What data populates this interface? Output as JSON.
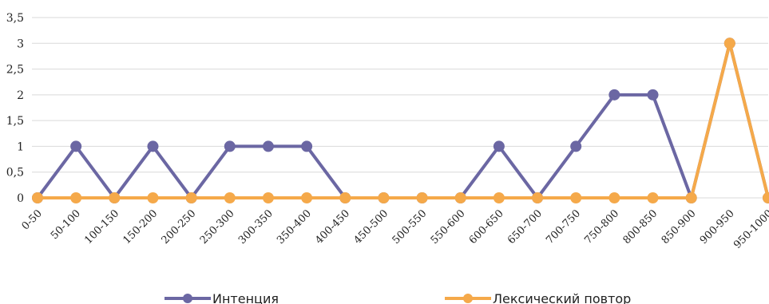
{
  "chart_data": {
    "type": "line",
    "categories": [
      "0-50",
      "50-100",
      "100-150",
      "150-200",
      "200-250",
      "250-300",
      "300-350",
      "350-400",
      "400-450",
      "450-500",
      "500-550",
      "550-600",
      "600-650",
      "650-700",
      "700-750",
      "750-800",
      "800-850",
      "850-900",
      "900-950",
      "950-1000"
    ],
    "y_ticks": [
      "0",
      "0,5",
      "1",
      "1,5",
      "2",
      "2,5",
      "3",
      "3,5"
    ],
    "ylim": [
      0,
      3.5
    ],
    "grid": true,
    "legend_position": "bottom",
    "series": [
      {
        "name": "Интенция",
        "color": "#6b67a3",
        "values": [
          0,
          1,
          0,
          1,
          0,
          1,
          1,
          1,
          0,
          0,
          0,
          0,
          1,
          0,
          1,
          2,
          2,
          0,
          3,
          0
        ]
      },
      {
        "name": "Лексический повтор",
        "color": "#f5a94a",
        "values": [
          0,
          0,
          0,
          0,
          0,
          0,
          0,
          0,
          0,
          0,
          0,
          0,
          0,
          0,
          0,
          0,
          0,
          0,
          3,
          0
        ]
      }
    ]
  }
}
